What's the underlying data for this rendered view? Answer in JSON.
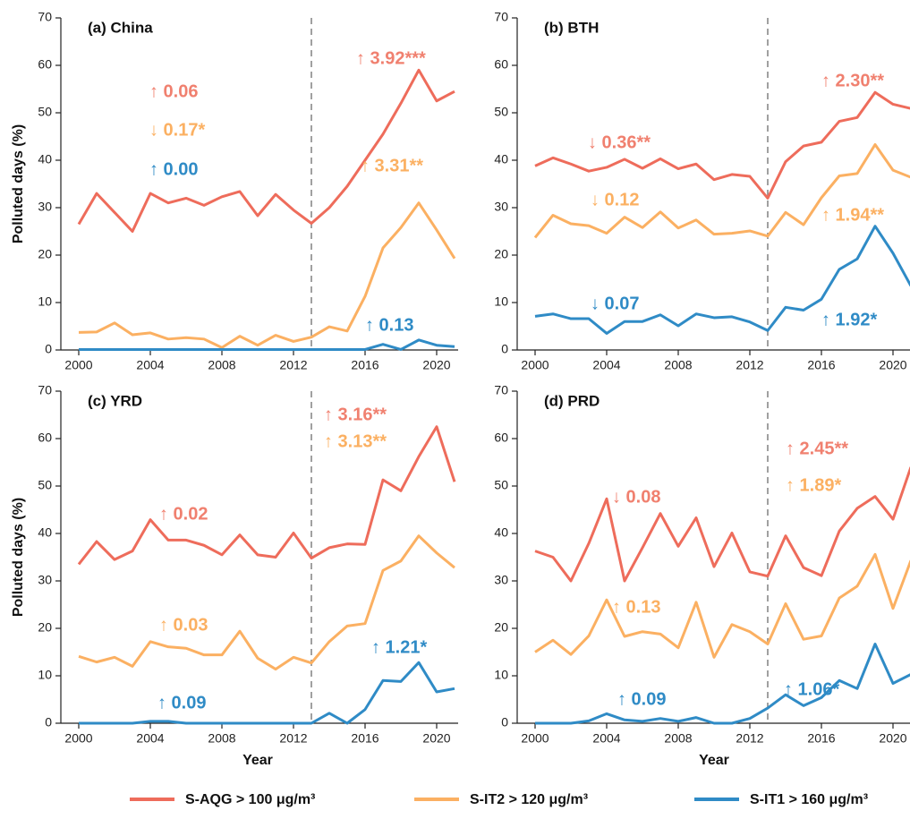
{
  "chart_data": [
    {
      "type": "line",
      "title": "(a) China",
      "y_label": "Polluted days (%)",
      "x": [
        2000,
        2001,
        2002,
        2003,
        2004,
        2005,
        2006,
        2007,
        2008,
        2009,
        2010,
        2011,
        2012,
        2013,
        2014,
        2015,
        2016,
        2017,
        2018,
        2019,
        2020,
        2021
      ],
      "xlim": [
        1999,
        2021.2
      ],
      "xticks": [
        2000,
        2004,
        2008,
        2012,
        2016,
        2020
      ],
      "ylim": [
        0,
        70
      ],
      "yticks": [
        0,
        10,
        20,
        30,
        40,
        50,
        60,
        70
      ],
      "vline": 2013,
      "series": [
        {
          "name": "S-AQG > 100 μg/m³",
          "color": "#ee6c5b",
          "values": [
            26.5,
            33,
            29,
            25,
            33,
            31,
            32,
            30.5,
            32.3,
            33.4,
            28.3,
            32.8,
            29.5,
            26.7,
            30,
            34.5,
            40,
            45.5,
            52,
            59,
            52.5,
            54.5
          ]
        },
        {
          "name": "S-IT2 > 120 μg/m³",
          "color": "#fbb062",
          "values": [
            3.7,
            3.8,
            5.7,
            3.2,
            3.6,
            2.3,
            2.6,
            2.3,
            0.5,
            2.9,
            1,
            3.1,
            1.8,
            2.7,
            4.9,
            4,
            11.3,
            21.5,
            25.8,
            31,
            25.3,
            19.3
          ]
        },
        {
          "name": "S-IT1 > 160 μg/m³",
          "color": "#2f8bc6",
          "values": [
            0.1,
            0.1,
            0.1,
            0.1,
            0.1,
            0.1,
            0.1,
            0.1,
            0.1,
            0.1,
            0.1,
            0.1,
            0.1,
            0.1,
            0.1,
            0.1,
            0.1,
            1.2,
            0.1,
            2.1,
            1,
            0.7
          ]
        }
      ],
      "annotations": [
        {
          "text": "↑ 0.06",
          "color": "#f0806f"
        },
        {
          "text": "↓ 0.17*",
          "color": "#fbb062"
        },
        {
          "text": "↑ 0.00",
          "color": "#2f8bc6"
        },
        {
          "text": "↑ 3.92***",
          "color": "#f0806f"
        },
        {
          "text": "↑ 3.31**",
          "color": "#fbb062"
        },
        {
          "text": "↑ 0.13",
          "color": "#2f8bc6"
        }
      ]
    },
    {
      "type": "line",
      "title": "(b) BTH",
      "x": [
        2000,
        2001,
        2002,
        2003,
        2004,
        2005,
        2006,
        2007,
        2008,
        2009,
        2010,
        2011,
        2012,
        2013,
        2014,
        2015,
        2016,
        2017,
        2018,
        2019,
        2020,
        2021
      ],
      "xlim": [
        1999,
        2021.2
      ],
      "xticks": [
        2000,
        2004,
        2008,
        2012,
        2016,
        2020
      ],
      "ylim": [
        0,
        70
      ],
      "yticks": [
        0,
        10,
        20,
        30,
        40,
        50,
        60,
        70
      ],
      "vline": 2013,
      "series": [
        {
          "name": "S-AQG > 100 μg/m³",
          "color": "#ee6c5b",
          "values": [
            38.8,
            40.5,
            39.2,
            37.7,
            38.5,
            40.2,
            38.3,
            40.3,
            38.2,
            39.2,
            35.9,
            37,
            36.6,
            32,
            39.7,
            43,
            43.8,
            48.2,
            49,
            54.3,
            51.8,
            50.9
          ]
        },
        {
          "name": "S-IT2 > 120 μg/m³",
          "color": "#fbb062",
          "values": [
            23.7,
            28.4,
            26.6,
            26.2,
            24.6,
            28,
            25.8,
            29.1,
            25.7,
            27.4,
            24.4,
            24.6,
            25.1,
            24,
            29,
            26.4,
            32.1,
            36.7,
            37.2,
            43.3,
            37.9,
            36.4
          ]
        },
        {
          "name": "S-IT1 > 160 μg/m³",
          "color": "#2f8bc6",
          "values": [
            7.1,
            7.6,
            6.6,
            6.6,
            3.5,
            6,
            6,
            7.4,
            5.1,
            7.6,
            6.8,
            7,
            5.9,
            4.1,
            9,
            8.4,
            10.7,
            17,
            19.2,
            26.1,
            20.4,
            13.5
          ]
        }
      ],
      "annotations": [
        {
          "text": "↓ 0.36**",
          "color": "#f0806f"
        },
        {
          "text": "↓ 0.12",
          "color": "#fbb062"
        },
        {
          "text": "↓ 0.07",
          "color": "#2f8bc6"
        },
        {
          "text": "↑ 2.30**",
          "color": "#f0806f"
        },
        {
          "text": "↑ 1.94**",
          "color": "#fbb062"
        },
        {
          "text": "↑ 1.92*",
          "color": "#2f8bc6"
        }
      ]
    },
    {
      "type": "line",
      "title": "(c) YRD",
      "y_label": "Polluted days (%)",
      "x_label": "Year",
      "x": [
        2000,
        2001,
        2002,
        2003,
        2004,
        2005,
        2006,
        2007,
        2008,
        2009,
        2010,
        2011,
        2012,
        2013,
        2014,
        2015,
        2016,
        2017,
        2018,
        2019,
        2020,
        2021
      ],
      "xlim": [
        1999,
        2021.2
      ],
      "xticks": [
        2000,
        2004,
        2008,
        2012,
        2016,
        2020
      ],
      "ylim": [
        0,
        70
      ],
      "yticks": [
        0,
        10,
        20,
        30,
        40,
        50,
        60,
        70
      ],
      "vline": 2013,
      "series": [
        {
          "name": "S-AQG > 100 μg/m³",
          "color": "#ee6c5b",
          "values": [
            33.5,
            38.3,
            34.5,
            36.3,
            42.9,
            38.6,
            38.6,
            37.5,
            35.5,
            39.7,
            35.5,
            35,
            40.1,
            34.8,
            37,
            37.8,
            37.7,
            51.3,
            49,
            56.2,
            62.5,
            50.9
          ]
        },
        {
          "name": "S-IT2 > 120 μg/m³",
          "color": "#fbb062",
          "values": [
            14.1,
            12.9,
            13.9,
            12,
            17.2,
            16.1,
            15.8,
            14.4,
            14.4,
            19.4,
            13.7,
            11.4,
            13.9,
            12.7,
            17.2,
            20.5,
            21,
            32.2,
            34.2,
            39.5,
            35.9,
            32.8
          ]
        },
        {
          "name": "S-IT1 > 160 μg/m³",
          "color": "#2f8bc6",
          "values": [
            0,
            0,
            0,
            0,
            0.4,
            0.4,
            0,
            0,
            0,
            0,
            0,
            0,
            0,
            0,
            2.1,
            0,
            2.9,
            9,
            8.8,
            12.8,
            6.6,
            7.3
          ]
        }
      ],
      "annotations": [
        {
          "text": "↑ 0.02",
          "color": "#f0806f"
        },
        {
          "text": "↑ 0.03",
          "color": "#fbb062"
        },
        {
          "text": "↑ 0.09",
          "color": "#2f8bc6"
        },
        {
          "text": "↑ 3.16**",
          "color": "#f0806f"
        },
        {
          "text": "↑ 3.13**",
          "color": "#fbb062"
        },
        {
          "text": "↑ 1.21*",
          "color": "#2f8bc6"
        }
      ]
    },
    {
      "type": "line",
      "title": "(d) PRD",
      "x_label": "Year",
      "x": [
        2000,
        2001,
        2002,
        2003,
        2004,
        2005,
        2006,
        2007,
        2008,
        2009,
        2010,
        2011,
        2012,
        2013,
        2014,
        2015,
        2016,
        2017,
        2018,
        2019,
        2020,
        2021
      ],
      "xlim": [
        1999,
        2021.2
      ],
      "xticks": [
        2000,
        2004,
        2008,
        2012,
        2016,
        2020
      ],
      "ylim": [
        0,
        70
      ],
      "yticks": [
        0,
        10,
        20,
        30,
        40,
        50,
        60,
        70
      ],
      "vline": 2013,
      "series": [
        {
          "name": "S-AQG > 100 μg/m³",
          "color": "#ee6c5b",
          "values": [
            36.3,
            35,
            30,
            37.9,
            47.3,
            30,
            37,
            44.2,
            37.3,
            43.3,
            33,
            40.1,
            31.9,
            31,
            39.5,
            32.8,
            31.1,
            40.5,
            45.3,
            47.8,
            43,
            54
          ]
        },
        {
          "name": "S-IT2 > 120 μg/m³",
          "color": "#fbb062",
          "values": [
            15,
            17.5,
            14.5,
            18.4,
            26,
            18.3,
            19.3,
            18.8,
            15.9,
            25.5,
            13.9,
            20.8,
            19.3,
            16.7,
            25.2,
            17.7,
            18.4,
            26.4,
            28.9,
            35.6,
            24.2,
            34.3
          ]
        },
        {
          "name": "S-IT1 > 160 μg/m³",
          "color": "#2f8bc6",
          "values": [
            0,
            0,
            0,
            0.5,
            2,
            0.7,
            0.4,
            1,
            0.4,
            1.2,
            0,
            0,
            1,
            3.2,
            6,
            3.7,
            5.4,
            9,
            7.3,
            16.7,
            8.4,
            10.3
          ]
        }
      ],
      "annotations": [
        {
          "text": "↓ 0.08",
          "color": "#f0806f"
        },
        {
          "text": "↑ 0.13",
          "color": "#fbb062"
        },
        {
          "text": "↑ 0.09",
          "color": "#2f8bc6"
        },
        {
          "text": "↑ 2.45**",
          "color": "#f0806f"
        },
        {
          "text": "↑ 1.89*",
          "color": "#fbb062"
        },
        {
          "text": "↑ 1.06*",
          "color": "#2f8bc6"
        }
      ]
    }
  ]
}
